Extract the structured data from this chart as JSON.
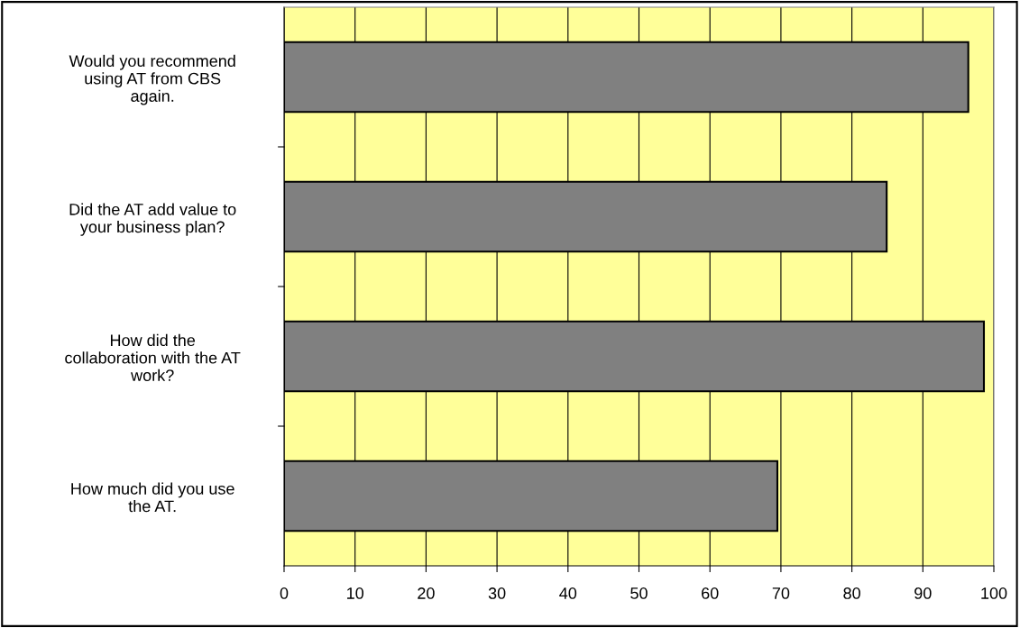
{
  "chart_data": {
    "type": "bar",
    "orientation": "horizontal",
    "categories": [
      "Would you recommend\nusing AT from CBS\nagain.",
      "Did the AT add value to\nyour business plan?",
      "How did the\ncollaboration with the AT\nwork?",
      "How much did you use\nthe AT."
    ],
    "values": [
      96.4,
      84.9,
      98.6,
      69.5
    ],
    "color": "#808080",
    "xlim": [
      0,
      100
    ],
    "xticks": [
      0,
      10,
      20,
      30,
      40,
      50,
      60,
      70,
      80,
      90,
      100
    ],
    "grid": "x"
  }
}
